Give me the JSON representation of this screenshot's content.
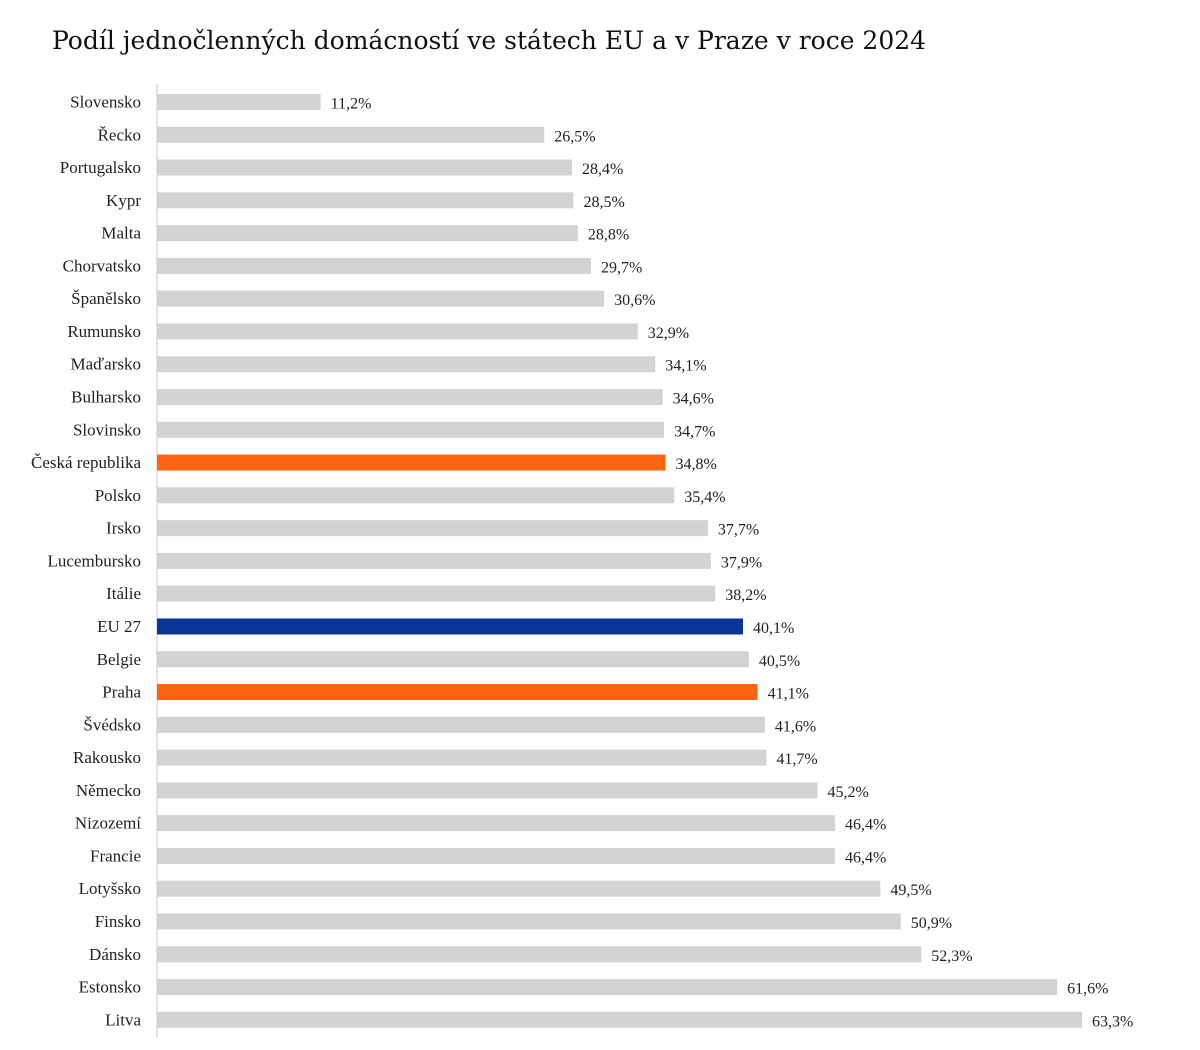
{
  "chart_data": {
    "type": "bar",
    "orientation": "horizontal",
    "title": "Podíl jednočlenných domácností ve státech EU a v Praze v roce 2024",
    "xlabel": "",
    "ylabel": "",
    "grid": false,
    "legend": "none",
    "xlim": [
      0,
      63.3
    ],
    "value_suffix": "%",
    "decimal_separator": ",",
    "categories": [
      "Slovensko",
      "Řecko",
      "Portugalsko",
      "Kypr",
      "Malta",
      "Chorvatsko",
      "Španělsko",
      "Rumunsko",
      "Maďarsko",
      "Bulharsko",
      "Slovinsko",
      "Česká republika",
      "Polsko",
      "Irsko",
      "Lucembursko",
      "Itálie",
      "EU 27",
      "Belgie",
      "Praha",
      "Švédsko",
      "Rakousko",
      "Německo",
      "Nizozemí",
      "Francie",
      "Lotyšsko",
      "Finsko",
      "Dánsko",
      "Estonsko",
      "Litva"
    ],
    "values": [
      11.2,
      26.5,
      28.4,
      28.5,
      28.8,
      29.7,
      30.6,
      32.9,
      34.1,
      34.6,
      34.7,
      34.8,
      35.4,
      37.7,
      37.9,
      38.2,
      40.1,
      40.5,
      41.1,
      41.6,
      41.7,
      45.2,
      46.4,
      46.4,
      49.5,
      50.9,
      52.3,
      61.6,
      63.3
    ],
    "colors": {
      "default": "#d3d3d3",
      "highlight": "#ff6410",
      "eu": "#0a3594",
      "axis": "#c9c9c9"
    },
    "highlights": {
      "Česká republika": "highlight",
      "Praha": "highlight",
      "EU 27": "eu"
    }
  }
}
